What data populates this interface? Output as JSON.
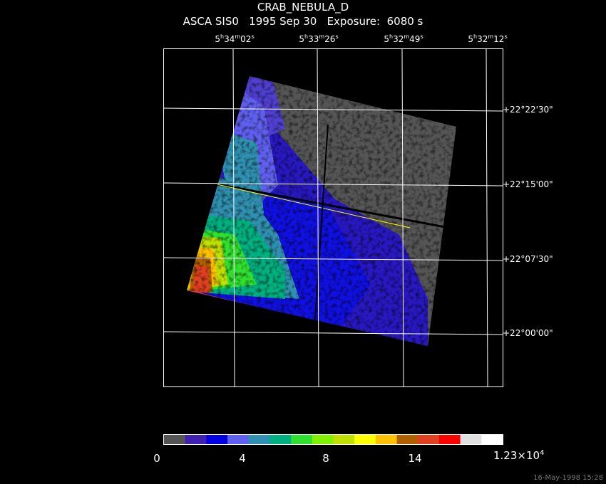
{
  "title": {
    "object": "CRAB_NEBULA_D",
    "line2": "ASCA SIS0   1995 Sep 30   Exposure:  6080 s"
  },
  "ra_labels": [
    {
      "h": "5",
      "m": "34",
      "s": "02"
    },
    {
      "h": "5",
      "m": "33",
      "s": "26"
    },
    {
      "h": "5",
      "m": "32",
      "s": "49"
    },
    {
      "h": "5",
      "m": "32",
      "s": "12"
    }
  ],
  "dec_labels": [
    "+22°22'30\"",
    "+22°15'00\"",
    "+22°07'30\"",
    "+22°00'00\""
  ],
  "colorbar": {
    "colors": [
      "#555555",
      "#4020b0",
      "#0000e0",
      "#6060f0",
      "#3090b0",
      "#00b080",
      "#30e030",
      "#80f000",
      "#c0e000",
      "#ffff00",
      "#ffc000",
      "#b06000",
      "#e04020",
      "#ff0000",
      "#e0e0e0",
      "#ffffff"
    ],
    "tick_labels": [
      "0",
      "4",
      "8",
      "14"
    ],
    "max_mantissa": "1.23×10",
    "max_exponent": "4"
  },
  "timestamp": "16-May-1998 15:28"
}
